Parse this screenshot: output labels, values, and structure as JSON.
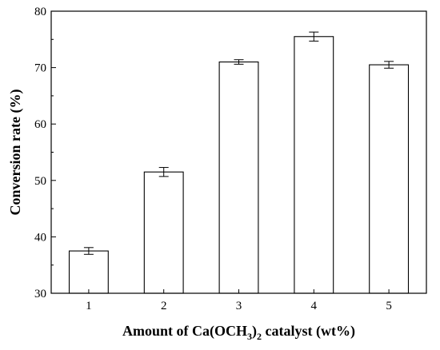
{
  "chart_data": {
    "type": "bar",
    "title": "",
    "categories": [
      "1",
      "2",
      "3",
      "4",
      "5"
    ],
    "values": [
      37.5,
      51.5,
      71.0,
      75.5,
      70.5
    ],
    "error": [
      0.6,
      0.8,
      0.4,
      0.8,
      0.6
    ],
    "xlabel": {
      "main": "Amount of Ca(OCH",
      "sub": "3",
      "close": ")",
      "sub2": "2",
      "rest": " catalyst (wt%)"
    },
    "ylabel": "Conversion rate (%)",
    "ylim": [
      30,
      80
    ],
    "yticks": [
      30,
      40,
      50,
      60,
      70,
      80
    ],
    "bar_fill": "#ffffff",
    "bar_stroke": "#000000",
    "grid": false
  }
}
